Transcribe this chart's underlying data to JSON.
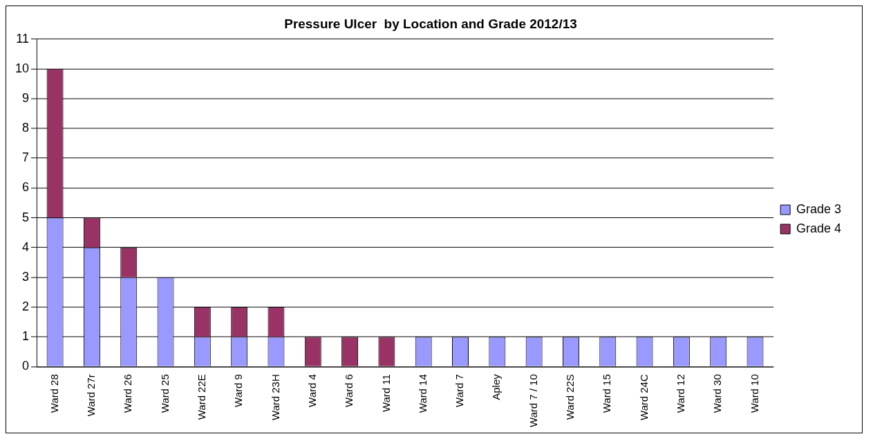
{
  "chart_data": {
    "type": "bar",
    "title": "Pressure Ulcer  by Location and Grade 2012/13",
    "categories": [
      "Ward 28",
      "Ward 27r",
      "Ward 26",
      "Ward 25",
      "Ward 22E",
      "Ward 9",
      "Ward 23H",
      "Ward 4",
      "Ward 6",
      "Ward 11",
      "Ward 14",
      "Ward 7",
      "Apley",
      "Ward 7 / 10",
      "Ward 22S",
      "Ward 15",
      "Ward 24C",
      "Ward 12",
      "Ward 30",
      "Ward 10"
    ],
    "series": [
      {
        "name": "Grade 3",
        "color": "#9999ff",
        "values": [
          5,
          4,
          3,
          3,
          1,
          1,
          1,
          0,
          0,
          0,
          1,
          1,
          1,
          1,
          1,
          1,
          1,
          1,
          1,
          1
        ]
      },
      {
        "name": "Grade 4",
        "color": "#993366",
        "values": [
          5,
          1,
          1,
          0,
          1,
          1,
          1,
          1,
          1,
          1,
          0,
          0,
          0,
          0,
          0,
          0,
          0,
          0,
          0,
          0
        ]
      }
    ],
    "stacked": true,
    "ylim": [
      0,
      11
    ],
    "yticks": [
      0,
      1,
      2,
      3,
      4,
      5,
      6,
      7,
      8,
      9,
      10,
      11
    ],
    "grid": "y",
    "legend": "right"
  }
}
